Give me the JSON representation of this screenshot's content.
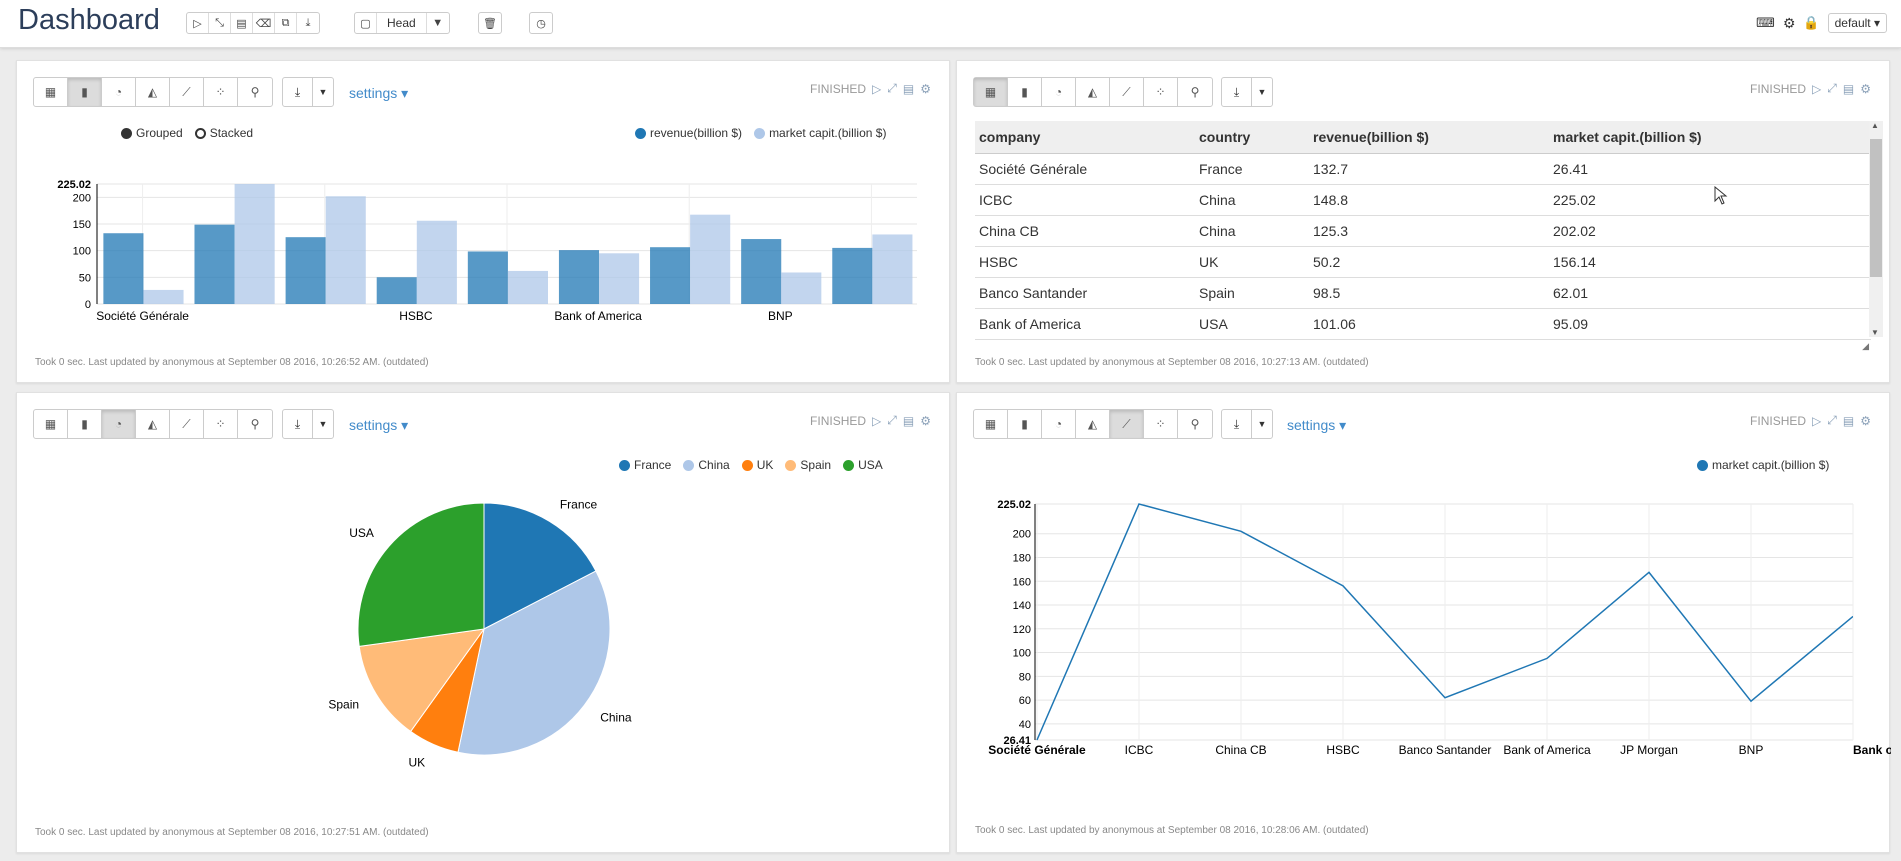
{
  "app": {
    "title": "Dashboard",
    "head_label": "Head",
    "interpreter": "default"
  },
  "colors": {
    "blue": "#1f77b4",
    "lightblue": "#aec7e8",
    "orange": "#ff7f0e",
    "lightorange": "#ffbb78",
    "green": "#2ca02c",
    "link": "#428bca"
  },
  "paragraphs": [
    {
      "status": "FINISHED",
      "settings_label": "settings",
      "footer": "Took 0 sec. Last updated by anonymous at September 08 2016, 10:26:52 AM. (outdated)",
      "chart_data": {
        "type": "bar",
        "mode_options": [
          "Grouped",
          "Stacked"
        ],
        "mode_selected": "Grouped",
        "categories": [
          "Société Générale",
          "ICBC",
          "China CB",
          "HSBC",
          "Banco Santander",
          "Bank of America",
          "JP Morgan",
          "BNP",
          "Bank of China"
        ],
        "x_tick_labels": [
          "Société Générale",
          "HSBC",
          "Bank of America",
          "BNP"
        ],
        "series": [
          {
            "name": "revenue(billion $)",
            "values": [
              132.7,
              148.8,
              125.3,
              50.2,
              98.5,
              101.06,
              106.5,
              121.8,
              105.2
            ]
          },
          {
            "name": "market capit.(billion $)",
            "values": [
              26.41,
              225.02,
              202.02,
              156.14,
              62.01,
              95.09,
              167.5,
              59.1,
              130.4
            ]
          }
        ],
        "y_ticks": [
          "0",
          "50",
          "100",
          "150",
          "200",
          "225.02"
        ],
        "ylim": [
          0,
          225.02
        ]
      }
    },
    {
      "status": "FINISHED",
      "footer": "Took 0 sec. Last updated by anonymous at September 08 2016, 10:27:13 AM. (outdated)",
      "table": {
        "headers": [
          "company",
          "country",
          "revenue(billion $)",
          "market capit.(billion $)"
        ],
        "rows": [
          [
            "Société Générale",
            "France",
            "132.7",
            "26.41"
          ],
          [
            "ICBC",
            "China",
            "148.8",
            "225.02"
          ],
          [
            "China CB",
            "China",
            "125.3",
            "202.02"
          ],
          [
            "HSBC",
            "UK",
            "50.2",
            "156.14"
          ],
          [
            "Banco Santander",
            "Spain",
            "98.5",
            "62.01"
          ],
          [
            "Bank of America",
            "USA",
            "101.06",
            "95.09"
          ]
        ]
      }
    },
    {
      "status": "FINISHED",
      "settings_label": "settings",
      "footer": "Took 0 sec. Last updated by anonymous at September 08 2016, 10:27:51 AM. (outdated)",
      "chart_data": {
        "type": "pie",
        "labels": [
          "France",
          "China",
          "UK",
          "Spain",
          "USA"
        ],
        "values": [
          132.7,
          274.1,
          50.2,
          98.5,
          207.56
        ]
      }
    },
    {
      "status": "FINISHED",
      "settings_label": "settings",
      "footer": "Took 0 sec. Last updated by anonymous at September 08 2016, 10:28:06 AM. (outdated)",
      "chart_data": {
        "type": "line",
        "series_name": "market capit.(billion $)",
        "categories": [
          "Société Générale",
          "ICBC",
          "China CB",
          "HSBC",
          "Banco Santander",
          "Bank of America",
          "JP Morgan",
          "BNP",
          "Bank of Ch"
        ],
        "values": [
          26.41,
          225.02,
          202.02,
          156.14,
          62.01,
          95.09,
          167.5,
          59.1,
          130.4
        ],
        "y_ticks": [
          "26.41",
          "40",
          "60",
          "80",
          "100",
          "120",
          "140",
          "160",
          "180",
          "200",
          "225.02"
        ],
        "ylim": [
          26.41,
          225.02
        ]
      }
    }
  ]
}
